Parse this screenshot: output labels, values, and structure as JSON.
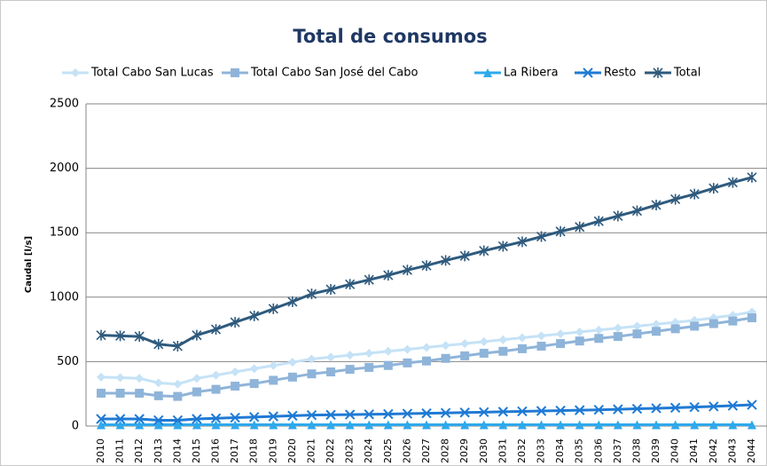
{
  "chart_data": {
    "type": "line",
    "title": "Total de consumos",
    "y_label": "Caudal [l/s]",
    "categories": [
      "2010",
      "2011",
      "2012",
      "2013",
      "2014",
      "2015",
      "2016",
      "2017",
      "2018",
      "2019",
      "2020",
      "2021",
      "2022",
      "2023",
      "2024",
      "2025",
      "2026",
      "2027",
      "2028",
      "2029",
      "2030",
      "2031",
      "2032",
      "2033",
      "2034",
      "2035",
      "2036",
      "2037",
      "2038",
      "2039",
      "2040",
      "2041",
      "2042",
      "2043",
      "2044"
    ],
    "series": [
      {
        "name": "Total Cabo San Lucas",
        "color": "#c5e2f6",
        "marker": "diamond",
        "values": [
          380,
          375,
          370,
          335,
          325,
          370,
          395,
          420,
          445,
          470,
          495,
          520,
          535,
          550,
          565,
          580,
          595,
          610,
          625,
          640,
          655,
          670,
          685,
          700,
          715,
          730,
          745,
          760,
          775,
          790,
          805,
          820,
          840,
          860,
          885
        ]
      },
      {
        "name": "Total Cabo San José del Cabo",
        "color": "#8fb4d9",
        "marker": "square",
        "values": [
          255,
          255,
          255,
          235,
          230,
          265,
          285,
          310,
          330,
          355,
          380,
          405,
          420,
          440,
          455,
          470,
          490,
          505,
          525,
          545,
          565,
          580,
          600,
          620,
          640,
          660,
          680,
          695,
          715,
          735,
          755,
          775,
          795,
          815,
          840
        ]
      },
      {
        "name": "La Ribera",
        "color": "#2fa9ec",
        "marker": "triangle",
        "values": [
          10,
          10,
          10,
          10,
          10,
          10,
          10,
          10,
          10,
          10,
          10,
          10,
          10,
          10,
          10,
          10,
          10,
          10,
          10,
          10,
          10,
          10,
          10,
          10,
          10,
          10,
          10,
          10,
          10,
          10,
          10,
          10,
          10,
          10,
          10
        ]
      },
      {
        "name": "Resto",
        "color": "#1f7ad4",
        "marker": "x",
        "values": [
          55,
          55,
          55,
          45,
          45,
          55,
          60,
          65,
          70,
          75,
          80,
          85,
          87,
          89,
          91,
          93,
          96,
          99,
          102,
          105,
          108,
          111,
          114,
          117,
          120,
          123,
          126,
          130,
          134,
          138,
          142,
          147,
          152,
          158,
          165
        ]
      },
      {
        "name": "Total",
        "color": "#2e5a7d",
        "marker": "star",
        "values": [
          705,
          700,
          695,
          635,
          620,
          705,
          750,
          805,
          855,
          910,
          965,
          1025,
          1060,
          1100,
          1135,
          1170,
          1210,
          1245,
          1285,
          1320,
          1360,
          1395,
          1430,
          1470,
          1510,
          1545,
          1590,
          1630,
          1670,
          1715,
          1760,
          1800,
          1845,
          1890,
          1930
        ]
      }
    ],
    "ylim": [
      0,
      2500
    ],
    "yticks": [
      0,
      500,
      1000,
      1500,
      2000,
      2500
    ],
    "grid": true,
    "legend": "top"
  }
}
